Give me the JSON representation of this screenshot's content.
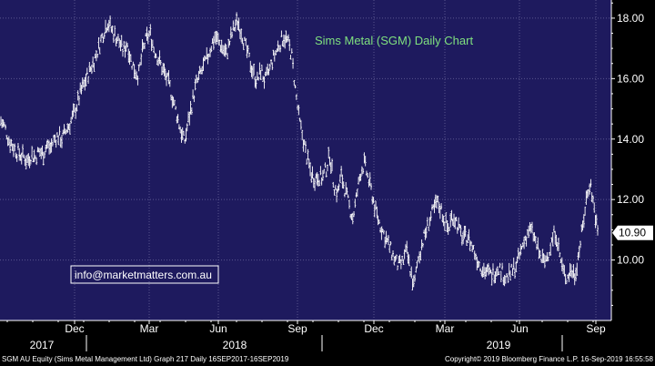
{
  "chart_data": {
    "type": "line",
    "title": "Sims Metal (SGM) Daily Chart",
    "annotation": "info@marketmatters.com.au",
    "ylim": [
      8.0,
      18.6
    ],
    "y_ticks": [
      10.0,
      12.0,
      14.0,
      16.0,
      18.0
    ],
    "y_tick_labels": [
      "10.00",
      "12.00",
      "14.00",
      "16.00",
      "18.00"
    ],
    "last_price": 10.9,
    "last_price_label": "10.90",
    "x_month_labels": [
      "Dec",
      "Mar",
      "Jun",
      "Sep",
      "Dec",
      "Mar",
      "Jun",
      "Sep"
    ],
    "x_year_labels": [
      "2017",
      "2018",
      "2019"
    ],
    "series": [
      {
        "values": [
          14.6,
          14.4,
          14.0,
          13.8,
          13.6,
          13.5,
          13.4,
          13.3,
          13.5,
          13.4,
          13.6,
          13.5,
          13.8,
          13.7,
          14.0,
          14.1,
          14.0,
          14.3,
          14.5,
          14.8,
          15.2,
          15.6,
          15.9,
          16.2,
          16.5,
          16.8,
          17.2,
          17.6,
          17.9,
          17.6,
          17.4,
          17.2,
          16.9,
          17.2,
          16.6,
          16.3,
          16.1,
          16.9,
          17.3,
          17.5,
          17.0,
          16.7,
          16.4,
          16.1,
          15.8,
          15.3,
          14.8,
          14.3,
          13.9,
          14.6,
          15.2,
          15.8,
          16.1,
          16.4,
          16.7,
          17.1,
          17.4,
          17.2,
          17.0,
          16.8,
          17.3,
          17.7,
          17.9,
          17.5,
          17.0,
          16.6,
          16.2,
          15.9,
          16.3,
          15.9,
          16.2,
          16.6,
          16.9,
          17.2,
          17.4,
          17.2,
          16.8,
          15.6,
          14.6,
          14.0,
          13.4,
          12.9,
          12.7,
          12.8,
          12.7,
          13.0,
          13.5,
          12.5,
          12.2,
          12.8,
          12.3,
          11.8,
          11.4,
          12.1,
          12.9,
          13.2,
          12.7,
          12.2,
          11.6,
          11.2,
          10.9,
          10.6,
          10.3,
          10.0,
          9.8,
          9.9,
          10.3,
          9.7,
          9.1,
          10.0,
          10.5,
          10.9,
          11.3,
          11.6,
          11.9,
          11.7,
          11.3,
          11.0,
          11.5,
          11.3,
          10.9,
          10.7,
          10.8,
          10.5,
          10.2,
          9.9,
          9.7,
          9.6,
          9.5,
          9.6,
          9.8,
          9.6,
          9.4,
          9.5,
          9.7,
          9.9,
          10.3,
          10.7,
          11.0,
          10.9,
          10.5,
          10.1,
          9.9,
          10.2,
          10.6,
          11.0,
          10.2,
          9.6,
          9.4,
          9.7,
          9.5,
          10.2,
          11.0,
          12.0,
          12.6,
          11.8,
          10.9
        ]
      }
    ]
  },
  "footer": {
    "left": "SGM AU Equity (Sims Metal Management Ltd) Graph 217  Daily 16SEP2017-16SEP2019",
    "right": "Copyright© 2019 Bloomberg Finance L.P.          16-Sep-2019 16:55:58"
  },
  "colors": {
    "plot_bg": "#1e1a5e",
    "axis_bg": "#000000",
    "line": "#ffffff",
    "title": "#7fe07f",
    "last_box": "#ffffff"
  }
}
